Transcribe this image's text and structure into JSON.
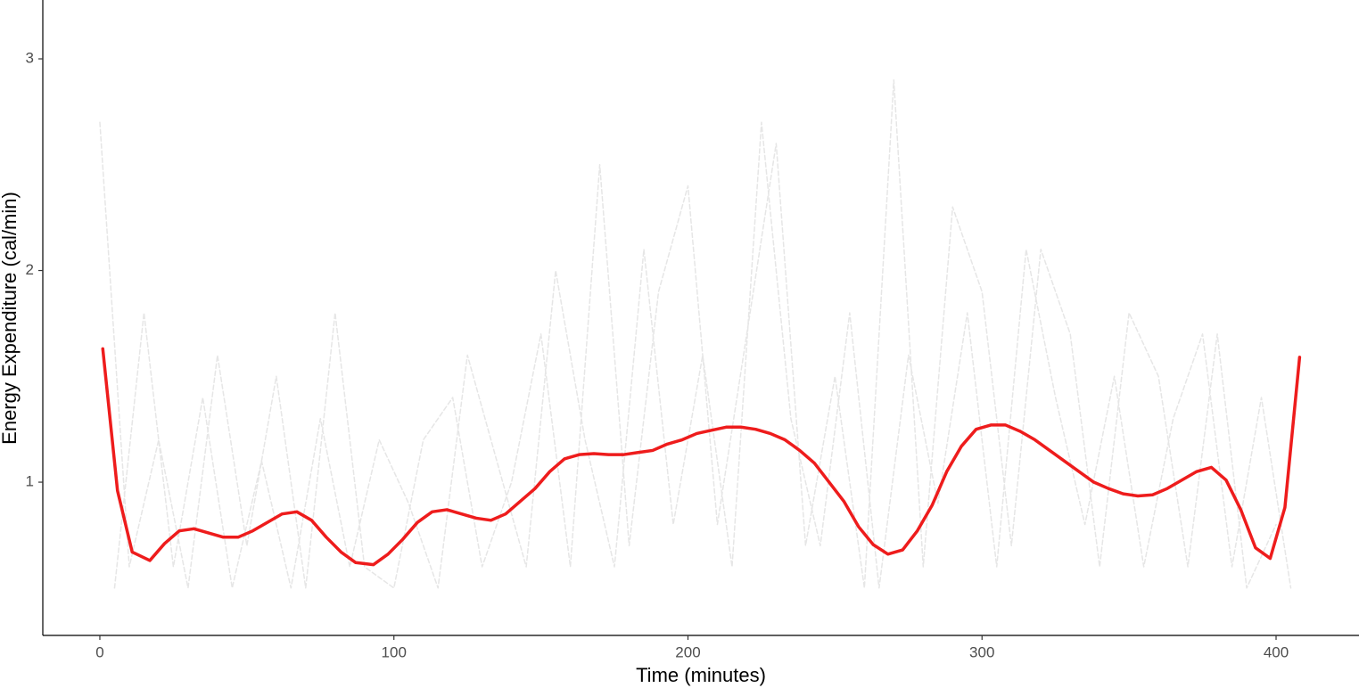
{
  "chart_data": {
    "type": "line",
    "xlabel": "Time (minutes)",
    "ylabel": "Energy Expenditure (cal/min)",
    "xlim": [
      -19.4,
      428.2
    ],
    "ylim": [
      0.276,
      3.278
    ],
    "xticks": [
      0,
      100,
      200,
      300,
      400
    ],
    "yticks": [
      1,
      2,
      3
    ],
    "grid": false,
    "series": [
      {
        "color": "#e6e6e6",
        "dashed": true,
        "x": [
          0,
          10,
          20,
          30,
          40,
          50,
          60,
          70,
          80,
          90,
          100,
          110,
          120,
          130,
          140,
          150,
          160,
          170,
          180,
          190,
          200,
          210,
          220,
          230,
          240,
          250,
          260,
          270,
          280,
          290,
          300,
          310,
          320,
          330,
          340,
          350,
          360,
          370,
          380,
          390,
          400
        ],
        "values": [
          2.7,
          0.6,
          1.2,
          0.5,
          1.6,
          0.7,
          1.5,
          0.5,
          1.8,
          0.6,
          0.5,
          1.2,
          1.4,
          0.6,
          1.0,
          1.7,
          0.6,
          2.5,
          0.7,
          1.9,
          2.4,
          0.8,
          1.7,
          2.6,
          0.7,
          1.5,
          0.5,
          2.9,
          0.6,
          2.3,
          1.9,
          0.7,
          2.1,
          1.7,
          0.6,
          1.8,
          1.5,
          0.6,
          1.7,
          0.5,
          0.8
        ]
      },
      {
        "color": "#e6e6e6",
        "dashed": true,
        "x": [
          5,
          15,
          25,
          35,
          45,
          55,
          65,
          75,
          85,
          95,
          105,
          115,
          125,
          135,
          145,
          155,
          165,
          175,
          185,
          195,
          205,
          215,
          225,
          235,
          245,
          255,
          265,
          275,
          285,
          295,
          305,
          315,
          325,
          335,
          345,
          355,
          365,
          375,
          385,
          395,
          405
        ],
        "values": [
          0.5,
          1.8,
          0.6,
          1.4,
          0.5,
          1.1,
          0.5,
          1.3,
          0.6,
          1.2,
          0.9,
          0.5,
          1.6,
          1.1,
          0.6,
          2.0,
          1.2,
          0.6,
          2.1,
          0.8,
          1.6,
          0.6,
          2.7,
          1.3,
          0.7,
          1.8,
          0.5,
          1.6,
          0.9,
          1.8,
          0.6,
          2.1,
          1.4,
          0.8,
          1.5,
          0.6,
          1.3,
          1.7,
          0.6,
          1.4,
          0.5
        ]
      },
      {
        "color": "#ee1c1c",
        "dashed": false,
        "x": [
          1,
          6,
          11,
          17,
          22,
          27,
          32,
          37,
          42,
          47,
          52,
          57,
          62,
          67,
          72,
          77,
          82,
          87,
          93,
          98,
          103,
          108,
          113,
          118,
          123,
          128,
          133,
          138,
          143,
          148,
          153,
          158,
          163,
          168,
          173,
          178,
          183,
          188,
          193,
          198,
          203,
          208,
          213,
          218,
          223,
          228,
          233,
          238,
          243,
          248,
          253,
          258,
          263,
          268,
          273,
          278,
          283,
          288,
          293,
          298,
          303,
          308,
          313,
          318,
          323,
          328,
          333,
          338,
          343,
          348,
          353,
          358,
          363,
          368,
          373,
          378,
          383,
          388,
          393,
          398,
          403,
          408
        ],
        "values": [
          1.63,
          0.96,
          0.67,
          0.63,
          0.71,
          0.77,
          0.78,
          0.76,
          0.74,
          0.74,
          0.77,
          0.81,
          0.85,
          0.86,
          0.82,
          0.74,
          0.67,
          0.62,
          0.61,
          0.66,
          0.73,
          0.81,
          0.86,
          0.87,
          0.85,
          0.83,
          0.82,
          0.85,
          0.91,
          0.97,
          1.05,
          1.11,
          1.13,
          1.135,
          1.13,
          1.13,
          1.14,
          1.15,
          1.18,
          1.2,
          1.23,
          1.245,
          1.26,
          1.26,
          1.25,
          1.23,
          1.2,
          1.15,
          1.09,
          1.0,
          0.91,
          0.79,
          0.705,
          0.66,
          0.68,
          0.77,
          0.89,
          1.05,
          1.17,
          1.25,
          1.27,
          1.27,
          1.24,
          1.2,
          1.15,
          1.1,
          1.05,
          1.0,
          0.97,
          0.945,
          0.935,
          0.94,
          0.97,
          1.01,
          1.05,
          1.07,
          1.01,
          0.87,
          0.69,
          0.64,
          0.88,
          1.59
        ]
      }
    ]
  }
}
